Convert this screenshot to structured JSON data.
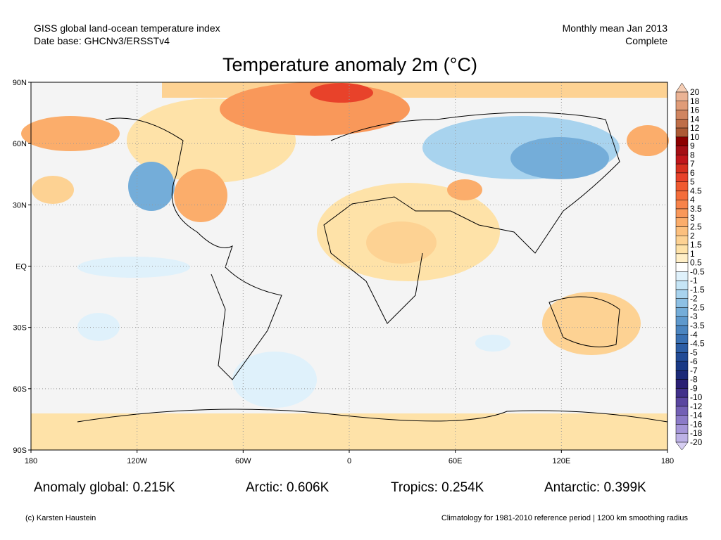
{
  "header": {
    "left_line1": "GISS global land-ocean temperature index",
    "left_line2": "Date base: GHCNv3/ERSSTv4",
    "right_line1": "Monthly mean Jan 2013",
    "right_line2": "Complete"
  },
  "title": "Temperature anomaly 2m (°C)",
  "map": {
    "lat_labels": [
      "90N",
      "60N",
      "30N",
      "EQ",
      "30S",
      "60S",
      "90S"
    ],
    "lon_labels": [
      "180",
      "120W",
      "60W",
      "0",
      "60E",
      "120E",
      "180"
    ],
    "colorbar": {
      "levels": [
        20,
        18,
        16,
        14,
        12,
        10,
        9,
        8,
        7,
        6,
        5,
        4.5,
        4,
        3.5,
        3,
        2.5,
        2,
        1.5,
        1,
        0.5,
        -0.5,
        -1,
        -1.5,
        -2,
        -2.5,
        -3,
        -3.5,
        -4,
        -4.5,
        -5,
        -6,
        -7,
        -8,
        -9,
        -10,
        -12,
        -14,
        -16,
        -18,
        -20
      ],
      "colors": [
        "#f5cdb4",
        "#ebb394",
        "#e09c78",
        "#d08560",
        "#bf6e48",
        "#ad5a35",
        "#8c0000",
        "#a50f15",
        "#c0161b",
        "#d7301f",
        "#e8422a",
        "#f05a30",
        "#f46d3a",
        "#f7834a",
        "#f9985a",
        "#fbad6b",
        "#fcc07e",
        "#fdd293",
        "#fee2a8",
        "#ffefc7",
        "#ffffff",
        "#dff1fb",
        "#c5e5f6",
        "#a8d3ee",
        "#8dc0e4",
        "#74add9",
        "#5e99cd",
        "#4b85c0",
        "#3a71b3",
        "#2d5ea5",
        "#224b96",
        "#1a3a86",
        "#1c2a78",
        "#2a1f74",
        "#41308a",
        "#5a46a0",
        "#7360b5",
        "#8c7bc8",
        "#a596d8",
        "#bdb2e6",
        "#d6cef2"
      ]
    }
  },
  "stats": [
    "Anomaly global: 0.215K",
    "Arctic: 0.606K",
    "Tropics: 0.254K",
    "Antarctic: 0.399K"
  ],
  "footer": {
    "left": "(c) Karsten Haustein",
    "right": "Climatology for 1981-2010 reference period | 1200 km smoothing radius"
  }
}
